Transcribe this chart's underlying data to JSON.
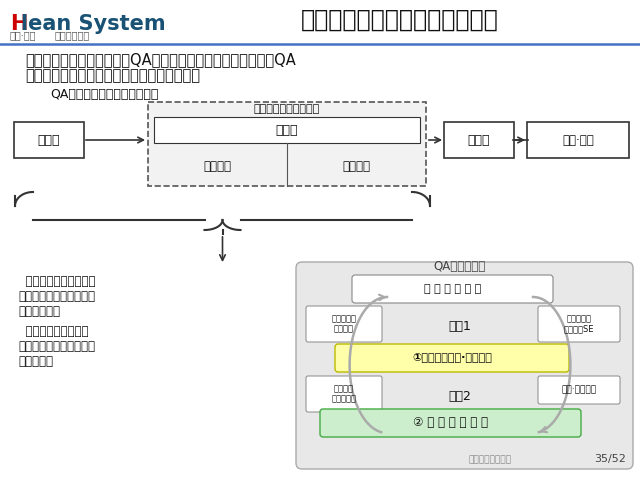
{
  "title": "１３、梳理工序质量特性（４）",
  "logo_h": "H",
  "logo_lean": "lean System",
  "logo_sub1": "幸福·精益",
  "logo_sub2": "高效企业系统",
  "bg_color": "#ffffff",
  "header_line_color": "#4472c4",
  "title_color": "#000000",
  "red_color": "#cc0000",
  "blue_color": "#1a5276",
  "body_text1": "自工序完结是管理活动，而QA网络表是管理工具；在范围上，QA",
  "body_text2": "网络表适用的范围要比自工序完结的更广泛。",
  "diagram_title": "QA网络表与自工序完结的关系",
  "box_qian": "前工序",
  "box_hou": "后工序",
  "box_jiancha": "检查·监查",
  "box_zi_top": "【自工序完结的范围】",
  "box_zi_mid": "自工序",
  "box_zi_left": "发生防止",
  "box_zi_right": "流出防止",
  "qa_title": "QA网络表保证",
  "qa_box1": "完 善 图 纸 活 动",
  "qa_step1": "步骤1",
  "qa_step2": "步骤2",
  "qa_left1": "以量产条件\n进行试制",
  "qa_right1": "试制阶段的\n三位一体SE",
  "qa_yellow": "①确立良品条件·设备保全",
  "qa_left2": "良品条件\n维持性管理",
  "qa_right2": "困扰·课题提出",
  "qa_green": "② 遵 守 标 准 作 业",
  "left_text1": "  在质量特性的营造中，",
  "left_text2": "技术人员和技术部门必须",
  "left_text3": "要参与进来。",
  "left_text4": "  生产现场的自工序完",
  "left_text5": "结活动，也有助于技术积",
  "left_text6": "累和进化。",
  "watermark": "精益生产促进中心",
  "page": "35/52"
}
